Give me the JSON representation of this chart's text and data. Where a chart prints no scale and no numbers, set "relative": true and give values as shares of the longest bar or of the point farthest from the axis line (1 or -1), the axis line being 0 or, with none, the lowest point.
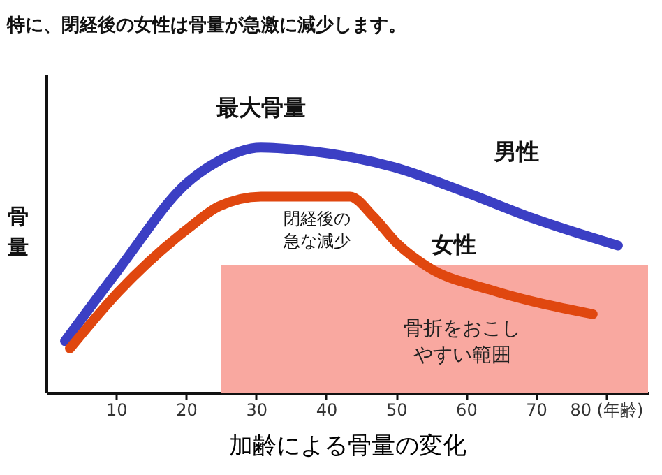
{
  "chart_data": {
    "type": "line",
    "title": "特に、閉経後の女性は骨量が急激に減少します。",
    "xlabel": "加齢による骨量の変化",
    "ylabel": "骨量",
    "relative": true,
    "xlim": [
      0,
      86
    ],
    "xticks": [
      10,
      20,
      30,
      40,
      50,
      60,
      70,
      {
        "value": 80,
        "label": "80 (年齢)"
      }
    ],
    "series": [
      {
        "name": "男性",
        "color": "#3b3fc4",
        "x": [
          2.7,
          10.3,
          20.3,
          24.3,
          30.7,
          36.3,
          49.7,
          59.7,
          69.7,
          81.7
        ],
        "values": [
          0.21,
          0.5,
          0.86,
          0.94,
          1.0,
          0.99,
          0.92,
          0.82,
          0.71,
          0.6
        ]
      },
      {
        "name": "女性",
        "color": "#e0470f",
        "x": [
          3.4,
          10.3,
          20.3,
          24.7,
          30.7,
          43.4,
          46.7,
          50.1,
          54.7,
          63.4,
          78.1
        ],
        "values": [
          0.18,
          0.41,
          0.67,
          0.76,
          0.8,
          0.8,
          0.72,
          0.61,
          0.51,
          0.42,
          0.32
        ]
      }
    ],
    "annotations": [
      {
        "text": "最大骨量",
        "x": 30.7,
        "y": 1.0
      },
      {
        "text": "閉経後の急な減少",
        "x": 46.7,
        "y": 0.72
      }
    ],
    "bands": [
      {
        "axis": "x",
        "from": 25,
        "to": 86,
        "label": "骨折をおこしやすい範囲",
        "color": "#f9a8a0"
      }
    ],
    "grid": false,
    "line_style": "solid",
    "marker": "none"
  }
}
